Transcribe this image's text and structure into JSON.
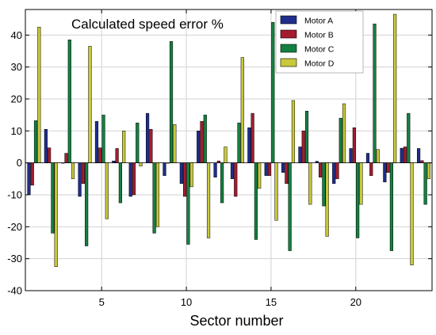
{
  "chart_data": {
    "type": "bar",
    "title": "Calculated speed error %",
    "xlabel": "Sector number",
    "ylabel": "",
    "ylim": [
      -40,
      48
    ],
    "yticks": [
      -40,
      -30,
      -20,
      -10,
      0,
      10,
      20,
      30,
      40
    ],
    "xticks": [
      5,
      10,
      15,
      20
    ],
    "grid": true,
    "legend_position": "top-right",
    "categories": [
      1,
      2,
      3,
      4,
      5,
      6,
      7,
      8,
      9,
      10,
      11,
      12,
      13,
      14,
      15,
      16,
      17,
      18,
      19,
      20,
      21,
      22,
      23,
      24
    ],
    "series": [
      {
        "name": "Motor A",
        "color": "#1f2d8c",
        "values": [
          -10,
          10.5,
          0,
          -10.5,
          13,
          0.6,
          -10.5,
          15.5,
          -4,
          -6.5,
          10,
          -4.5,
          -5,
          11,
          -4,
          -3,
          5,
          0.5,
          -6.5,
          4.5,
          3,
          -6,
          4.6,
          4.5
        ]
      },
      {
        "name": "Motor B",
        "color": "#a41c2e",
        "values": [
          -7,
          4.7,
          3,
          -6.5,
          4.7,
          4.5,
          -10,
          10.5,
          0,
          -10.5,
          13,
          0.6,
          -10.5,
          15.5,
          -4,
          -6.5,
          10,
          -4.5,
          -5,
          11,
          -4,
          -3,
          5,
          0.7
        ]
      },
      {
        "name": "Motor C",
        "color": "#148040",
        "values": [
          13.2,
          -22,
          38.5,
          -26,
          15,
          -12.5,
          12.5,
          -22,
          38,
          -25.5,
          15,
          -12.5,
          12.5,
          -24,
          44,
          -27.5,
          16.2,
          -13.5,
          14,
          -23.5,
          43.5,
          -27.5,
          15.5,
          -13
        ]
      },
      {
        "name": "Motor D",
        "color": "#c8c83a",
        "values": [
          42.5,
          -32.5,
          -5,
          36.5,
          -17.5,
          10,
          -1,
          -20,
          12,
          -7.5,
          -23.5,
          5,
          33,
          -8,
          -18,
          19.5,
          -13,
          -23,
          18.5,
          -13,
          4.2,
          46.5,
          -32,
          -5
        ]
      }
    ]
  }
}
